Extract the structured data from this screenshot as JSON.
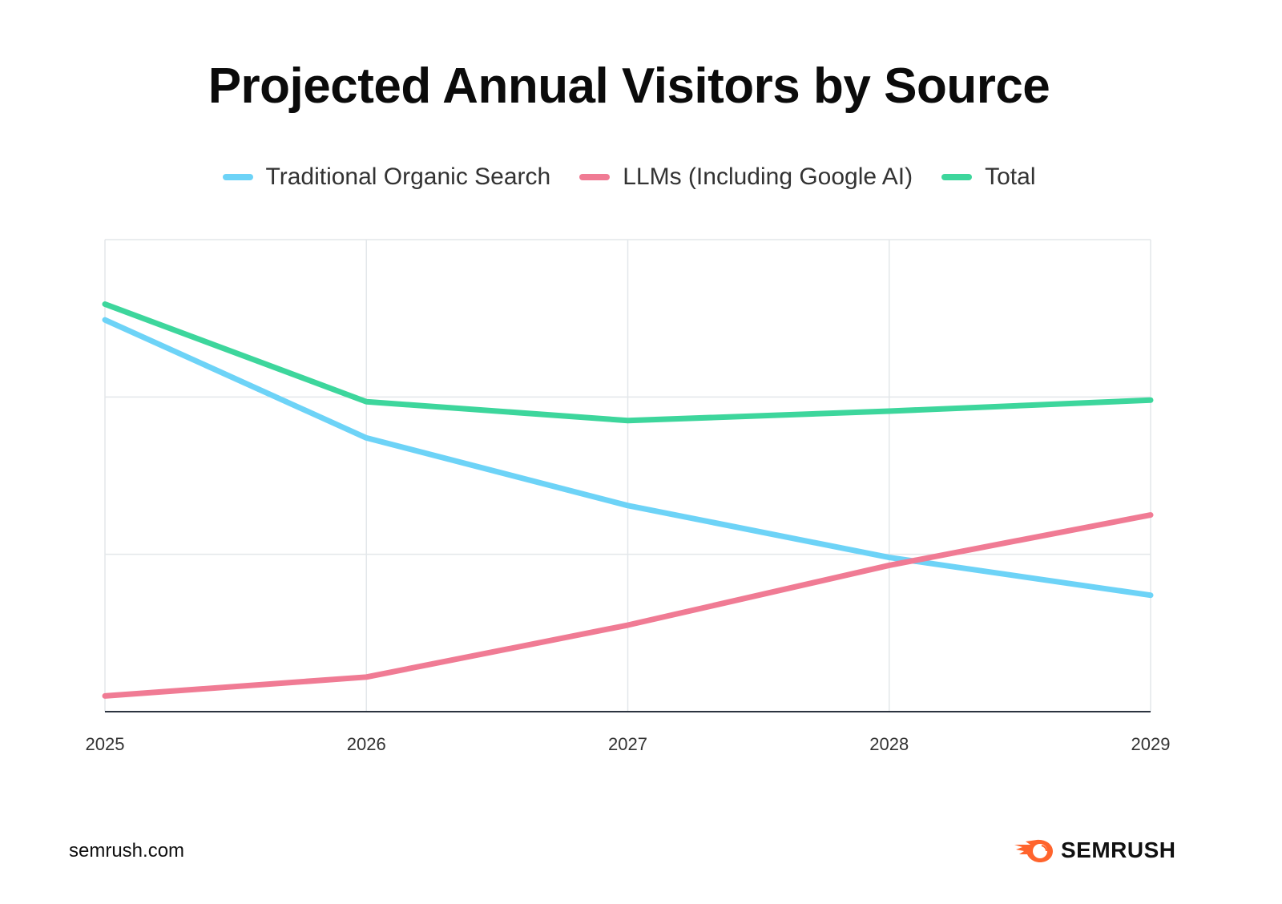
{
  "chart_data": {
    "type": "line",
    "title": "Projected Annual Visitors by Source",
    "xlabel": "",
    "ylabel": "",
    "x": [
      "2025",
      "2026",
      "2027",
      "2028",
      "2029"
    ],
    "ylim": [
      0,
      3
    ],
    "y_tick_labels": false,
    "grid": true,
    "legend_placement": "top-center",
    "series": [
      {
        "name": "Traditional Organic Search",
        "color": "#6dd3f7",
        "values": [
          2.49,
          1.74,
          1.31,
          0.98,
          0.74
        ]
      },
      {
        "name": "LLMs (Including Google AI)",
        "color": "#f07b94",
        "values": [
          0.1,
          0.22,
          0.55,
          0.93,
          1.25
        ]
      },
      {
        "name": "Total",
        "color": "#3dd69c",
        "values": [
          2.59,
          1.97,
          1.85,
          1.91,
          1.98
        ]
      }
    ]
  },
  "footer": {
    "source": "semrush.com"
  },
  "brand": {
    "logo_text": "SEMRUSH",
    "logo_color": "#ff642d"
  }
}
